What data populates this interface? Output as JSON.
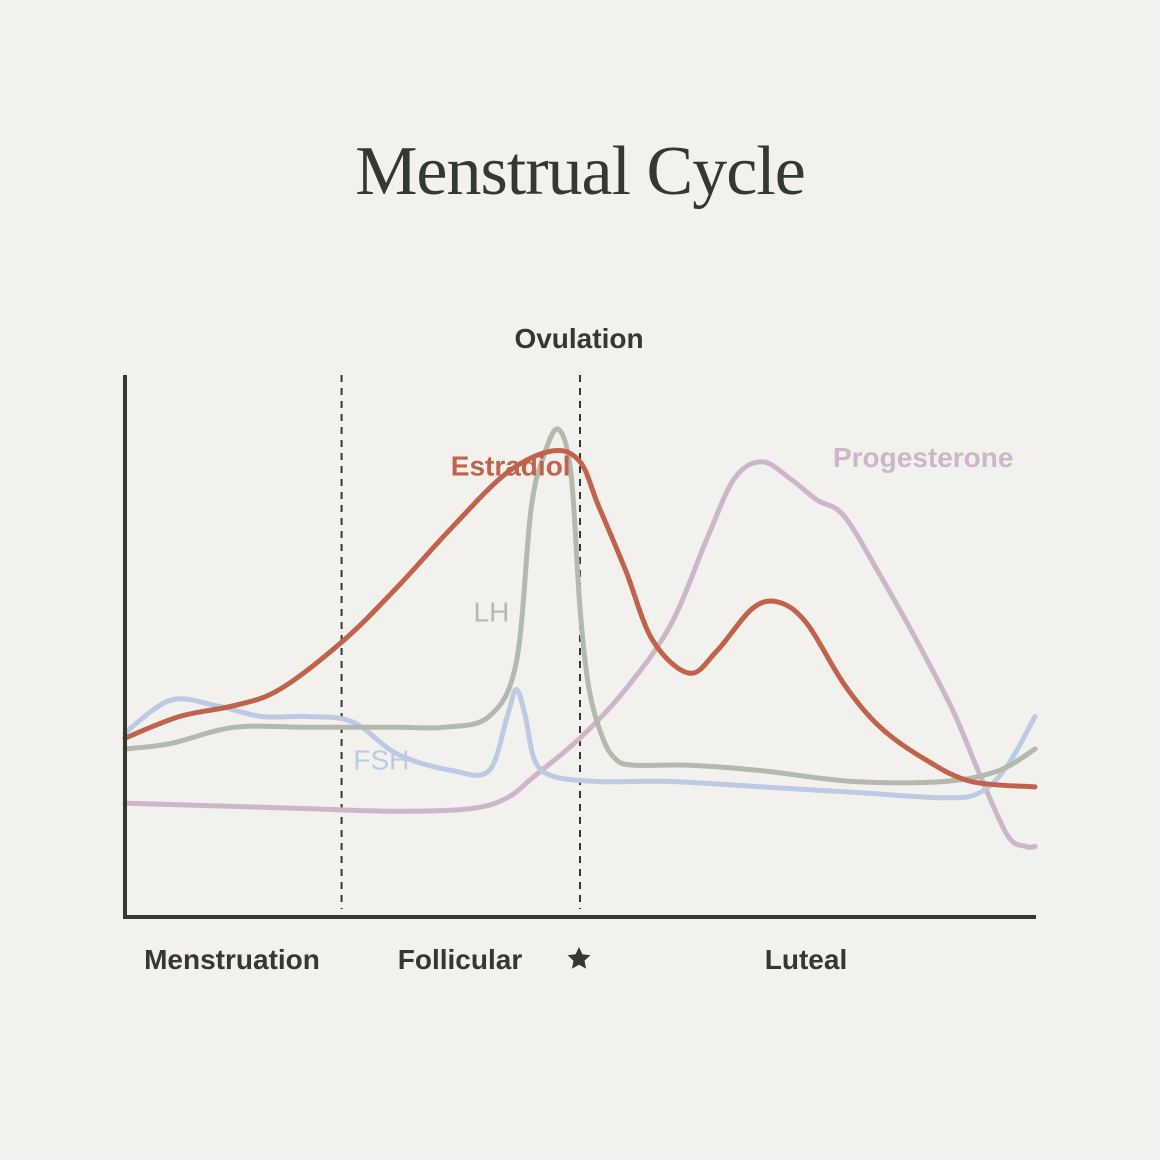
{
  "title": "Menstrual Cycle",
  "colors": {
    "background": "#f3f1ed",
    "axis": "#33392f",
    "estradiol": "#c0624c",
    "lh": "#b4b9ad",
    "fsh": "#bccae3",
    "progesterone": "#cdb6c9"
  },
  "chart_data": {
    "type": "line",
    "title": "Menstrual Cycle",
    "xlabel": "",
    "ylabel": "",
    "x_range": [
      0,
      100
    ],
    "y_range": [
      0,
      100
    ],
    "grid": false,
    "phases": [
      "Menstruation",
      "Follicular",
      "Luteal"
    ],
    "marker": {
      "label": "Ovulation",
      "icon": "star-icon",
      "x": 50
    },
    "dividers": [
      23.8,
      50
    ],
    "series": [
      {
        "name": "Estradiol",
        "color": "#c0624c",
        "label_at": [
          35.8,
          81.5
        ],
        "points": [
          [
            0,
            33
          ],
          [
            6,
            37
          ],
          [
            12,
            39
          ],
          [
            17,
            42
          ],
          [
            24,
            51
          ],
          [
            30,
            61
          ],
          [
            36,
            72
          ],
          [
            42,
            82
          ],
          [
            47,
            86
          ],
          [
            50,
            84
          ],
          [
            52,
            76
          ],
          [
            55,
            64
          ],
          [
            58,
            51
          ],
          [
            62,
            45
          ],
          [
            65,
            49
          ],
          [
            69,
            57
          ],
          [
            72,
            58
          ],
          [
            75,
            54
          ],
          [
            79,
            43
          ],
          [
            83,
            35
          ],
          [
            88,
            29
          ],
          [
            93,
            25
          ],
          [
            100,
            24
          ]
        ]
      },
      {
        "name": "LH",
        "color": "#b4b9ad",
        "label_at": [
          38.3,
          54.5
        ],
        "points": [
          [
            0,
            31
          ],
          [
            5,
            32
          ],
          [
            12,
            35
          ],
          [
            20,
            35
          ],
          [
            30,
            35
          ],
          [
            35,
            35
          ],
          [
            40,
            37
          ],
          [
            43,
            47
          ],
          [
            44.6,
            75
          ],
          [
            46,
            85
          ],
          [
            47.6,
            90
          ],
          [
            49,
            82
          ],
          [
            50,
            57
          ],
          [
            51,
            42
          ],
          [
            52.5,
            33
          ],
          [
            54,
            29
          ],
          [
            56,
            28
          ],
          [
            62,
            28
          ],
          [
            70,
            27
          ],
          [
            80,
            25
          ],
          [
            90,
            25
          ],
          [
            96,
            27
          ],
          [
            100,
            31
          ]
        ]
      },
      {
        "name": "FSH",
        "color": "#bccae3",
        "label_at": [
          25.1,
          27.2
        ],
        "points": [
          [
            0,
            34
          ],
          [
            5,
            40
          ],
          [
            10,
            39
          ],
          [
            15,
            37
          ],
          [
            20,
            37
          ],
          [
            25,
            36
          ],
          [
            30,
            30
          ],
          [
            36,
            27
          ],
          [
            40,
            27
          ],
          [
            42,
            37
          ],
          [
            43,
            42
          ],
          [
            44,
            37
          ],
          [
            45,
            29
          ],
          [
            47,
            26
          ],
          [
            52,
            25
          ],
          [
            60,
            25
          ],
          [
            70,
            24
          ],
          [
            80,
            23
          ],
          [
            90,
            22
          ],
          [
            94,
            23
          ],
          [
            97,
            28
          ],
          [
            100,
            37
          ]
        ]
      },
      {
        "name": "Progesterone",
        "color": "#cdb6c9",
        "label_at": [
          77.8,
          83
        ],
        "points": [
          [
            0,
            21
          ],
          [
            10,
            20.5
          ],
          [
            20,
            20
          ],
          [
            30,
            19.5
          ],
          [
            38,
            20
          ],
          [
            42,
            22
          ],
          [
            45,
            26
          ],
          [
            50,
            33
          ],
          [
            55,
            42
          ],
          [
            60,
            54
          ],
          [
            64,
            70
          ],
          [
            67,
            81
          ],
          [
            70,
            84
          ],
          [
            73,
            81
          ],
          [
            76,
            77
          ],
          [
            79,
            74
          ],
          [
            83,
            63
          ],
          [
            87,
            51
          ],
          [
            91,
            38
          ],
          [
            94,
            26
          ],
          [
            97,
            15
          ],
          [
            99,
            13
          ],
          [
            100,
            13
          ]
        ]
      }
    ]
  }
}
